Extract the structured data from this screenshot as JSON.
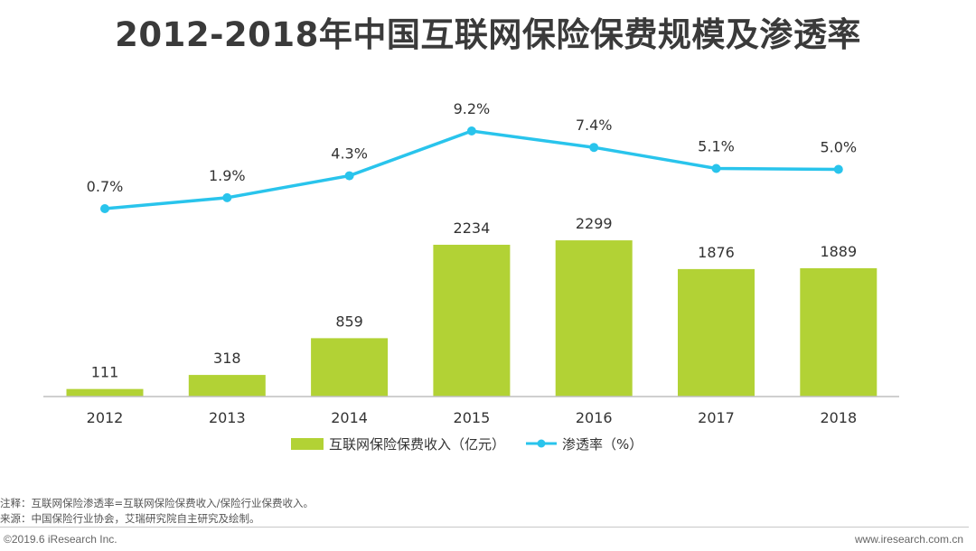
{
  "title": "2012-2018年中国互联网保险保费规模及渗透率",
  "chart_data": {
    "type": "bar",
    "categories": [
      "2012",
      "2013",
      "2014",
      "2015",
      "2016",
      "2017",
      "2018"
    ],
    "series": [
      {
        "name": "互联网保险保费收入（亿元）",
        "type": "bar",
        "values": [
          111,
          318,
          859,
          2234,
          2299,
          1876,
          1889
        ],
        "labels": [
          "111",
          "318",
          "859",
          "2234",
          "2299",
          "1876",
          "1889"
        ],
        "color": "#b2d235"
      },
      {
        "name": "渗透率（%）",
        "type": "line",
        "values": [
          0.7,
          1.9,
          4.3,
          9.2,
          7.4,
          5.1,
          5.0
        ],
        "labels": [
          "0.7%",
          "1.9%",
          "4.3%",
          "9.2%",
          "7.4%",
          "5.1%",
          "5.0%"
        ],
        "color": "#29c4ec"
      }
    ],
    "bar_ylim": [
      0,
      2300
    ],
    "line_ylim": [
      0,
      9.2
    ]
  },
  "note": "注释：互联网保险渗透率=互联网保险保费收入/保险行业保费收入。",
  "source": "来源：中国保险行业协会，艾瑞研究院自主研究及绘制。",
  "copyright": "©2019.6 iResearch Inc.",
  "website": "www.iresearch.com.cn"
}
